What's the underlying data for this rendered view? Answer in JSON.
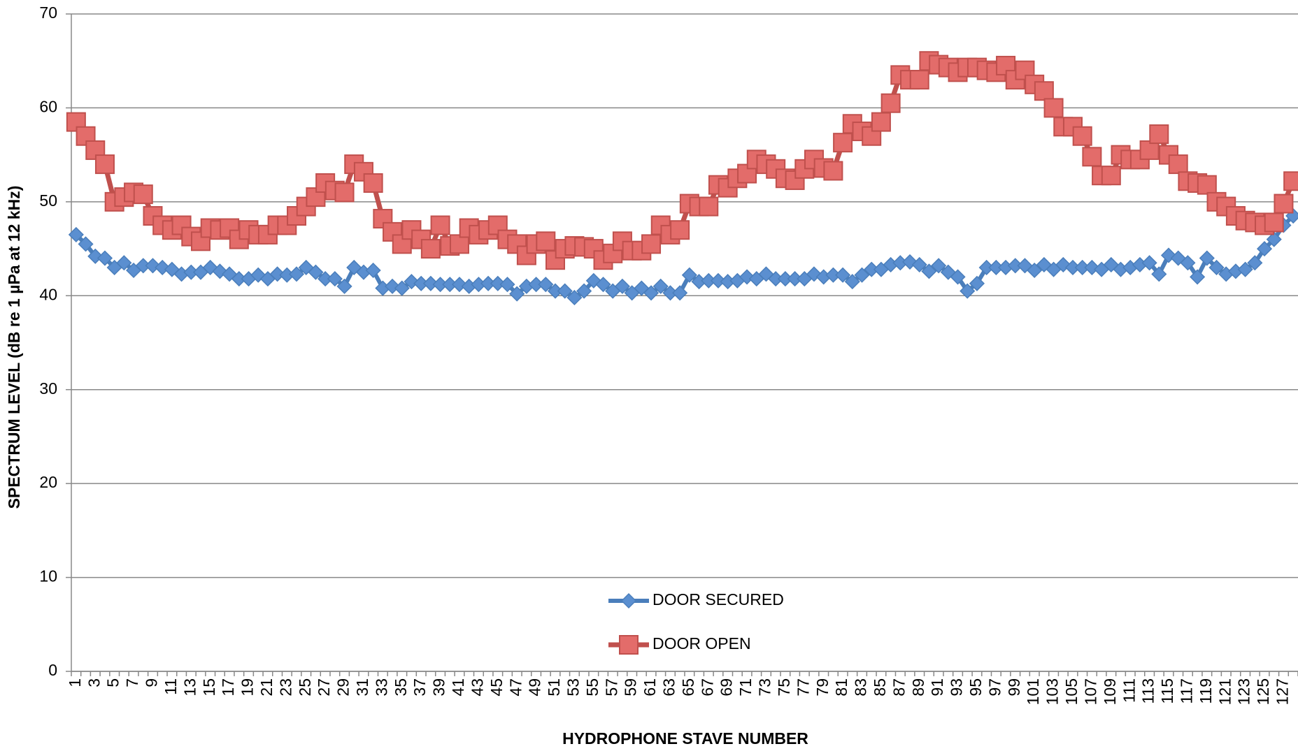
{
  "chart_data": {
    "type": "line",
    "xlabel": "HYDROPHONE STAVE NUMBER",
    "ylabel": "SPECTRUM LEVEL (dB re 1 µPa at 12 kHz)",
    "categories": [
      "1",
      null,
      "3",
      null,
      "5",
      null,
      "7",
      null,
      "9",
      null,
      "11",
      null,
      "13",
      null,
      "15",
      null,
      "17",
      null,
      "19",
      null,
      "21",
      null,
      "23",
      null,
      "25",
      null,
      "27",
      null,
      "29",
      null,
      "31",
      null,
      "33",
      null,
      "35",
      null,
      "37",
      null,
      "39",
      null,
      "41",
      null,
      "43",
      null,
      "45",
      null,
      "47",
      null,
      "49",
      null,
      "51",
      null,
      "53",
      null,
      "55",
      null,
      "57",
      null,
      "59",
      null,
      "61",
      null,
      "63",
      null,
      "65",
      null,
      "67",
      null,
      "69",
      null,
      "71",
      null,
      "73",
      null,
      "75",
      null,
      "77",
      null,
      "79",
      null,
      "81",
      null,
      "83",
      null,
      "85",
      null,
      "87",
      null,
      "89",
      null,
      "91",
      null,
      "93",
      null,
      "95",
      null,
      "97",
      null,
      "99",
      null,
      "101",
      null,
      "103",
      null,
      "105",
      null,
      "107",
      null,
      "109",
      null,
      "111",
      null,
      "113",
      null,
      "115",
      null,
      "117",
      null,
      "119",
      null,
      "121",
      null,
      "123",
      null,
      "125",
      null,
      "127",
      null
    ],
    "series": [
      {
        "name": "DOOR SECURED",
        "color": "#4a7ebb",
        "marker": "diamond",
        "values": [
          46.5,
          45.5,
          44.2,
          44,
          43,
          43.5,
          42.7,
          43.2,
          43.2,
          43,
          42.8,
          42.3,
          42.5,
          42.5,
          43,
          42.6,
          42.3,
          41.8,
          41.8,
          42.2,
          41.8,
          42.3,
          42.2,
          42.3,
          43,
          42.5,
          41.8,
          41.8,
          41,
          43,
          42.5,
          42.7,
          40.8,
          41,
          40.8,
          41.5,
          41.3,
          41.3,
          41.2,
          41.2,
          41.2,
          41,
          41.2,
          41.3,
          41.3,
          41.2,
          40.2,
          41,
          41.2,
          41.2,
          40.5,
          40.5,
          39.8,
          40.5,
          41.6,
          41.2,
          40.5,
          41,
          40.3,
          40.8,
          40.3,
          41,
          40.3,
          40.3,
          42.2,
          41.5,
          41.6,
          41.6,
          41.5,
          41.6,
          42,
          41.8,
          42.3,
          41.8,
          41.8,
          41.8,
          41.8,
          42.3,
          42,
          42.2,
          42.2,
          41.5,
          42.2,
          42.8,
          42.8,
          43.3,
          43.5,
          43.6,
          43.3,
          42.6,
          43.2,
          42.5,
          42,
          40.5,
          41.3,
          43,
          43,
          43,
          43.2,
          43.2,
          42.7,
          43.3,
          42.8,
          43.3,
          43,
          43,
          43,
          42.8,
          43.3,
          42.8,
          43,
          43.3,
          43.5,
          42.3,
          44.3,
          44,
          43.5,
          42,
          44,
          43,
          42.3,
          42.6,
          42.8,
          43.5,
          45,
          46,
          47.5,
          48.5
        ]
      },
      {
        "name": "DOOR OPEN",
        "color": "#c0504d",
        "marker": "square",
        "values": [
          58.5,
          57,
          55.5,
          54,
          50,
          50.5,
          51,
          50.8,
          48.5,
          47.5,
          47,
          47.5,
          46.3,
          45.8,
          47.2,
          47,
          47.2,
          46,
          47,
          46.5,
          46.5,
          47.5,
          47.5,
          48.5,
          49.5,
          50.5,
          52,
          51.2,
          51,
          54,
          53.2,
          52,
          48.2,
          46.8,
          45.5,
          47,
          46,
          45,
          47.5,
          45.3,
          45.5,
          47.2,
          46.5,
          47,
          47.5,
          46,
          45.5,
          44.3,
          45.5,
          45.8,
          43.8,
          45,
          45.3,
          45.2,
          45,
          43.8,
          44.5,
          45.8,
          44.8,
          44.8,
          45.5,
          47.5,
          46.5,
          47,
          49.8,
          49.5,
          49.5,
          51.8,
          51.5,
          52.5,
          53,
          54.5,
          54,
          53.5,
          52.5,
          52.3,
          53.5,
          54.5,
          53.6,
          53.3,
          56.3,
          58.3,
          57.5,
          57,
          58.5,
          60.5,
          63.5,
          63,
          63,
          65,
          64.6,
          64.3,
          63.8,
          64.3,
          64.3,
          64,
          63.8,
          64.5,
          63,
          64,
          62.5,
          61.8,
          60,
          58,
          58,
          57,
          54.8,
          52.8,
          52.8,
          55,
          54.5,
          54.5,
          55.5,
          57.2,
          55,
          54,
          52.2,
          52,
          51.8,
          50,
          49.5,
          48.5,
          48,
          47.8,
          47.5,
          47.8,
          49.8,
          52.2
        ]
      }
    ],
    "ylim": [
      0,
      70
    ],
    "yticks": [
      0,
      10,
      20,
      30,
      40,
      50,
      60,
      70
    ],
    "grid": true,
    "legend": "bottom"
  }
}
